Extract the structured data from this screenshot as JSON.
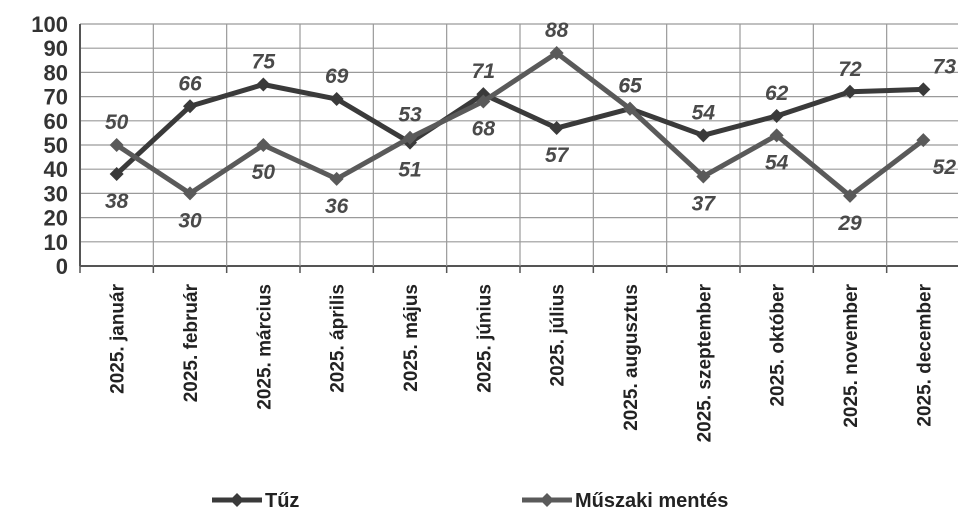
{
  "chart_data": {
    "type": "line",
    "categories": [
      "2025. január",
      "2025. február",
      "2025. március",
      "2025. április",
      "2025. május",
      "2025. június",
      "2025. július",
      "2025. augusztus",
      "2025. szeptember",
      "2025. október",
      "2025. november",
      "2025. december"
    ],
    "series": [
      {
        "name": "Tűz",
        "values": [
          38,
          66,
          75,
          69,
          51,
          71,
          57,
          65,
          54,
          62,
          72,
          73
        ],
        "color": "#3a3a3a",
        "marker": "diamond"
      },
      {
        "name": "Műszaki mentés",
        "values": [
          50,
          30,
          50,
          36,
          53,
          68,
          88,
          65,
          37,
          54,
          29,
          52
        ],
        "color": "#5a5a5a",
        "marker": "diamond"
      }
    ],
    "ylim": [
      0,
      100
    ],
    "yticks": [
      "0",
      "10",
      "20",
      "30",
      "40",
      "50",
      "60",
      "70",
      "80",
      "90",
      "100"
    ],
    "grid": true,
    "legend": "bottom"
  }
}
